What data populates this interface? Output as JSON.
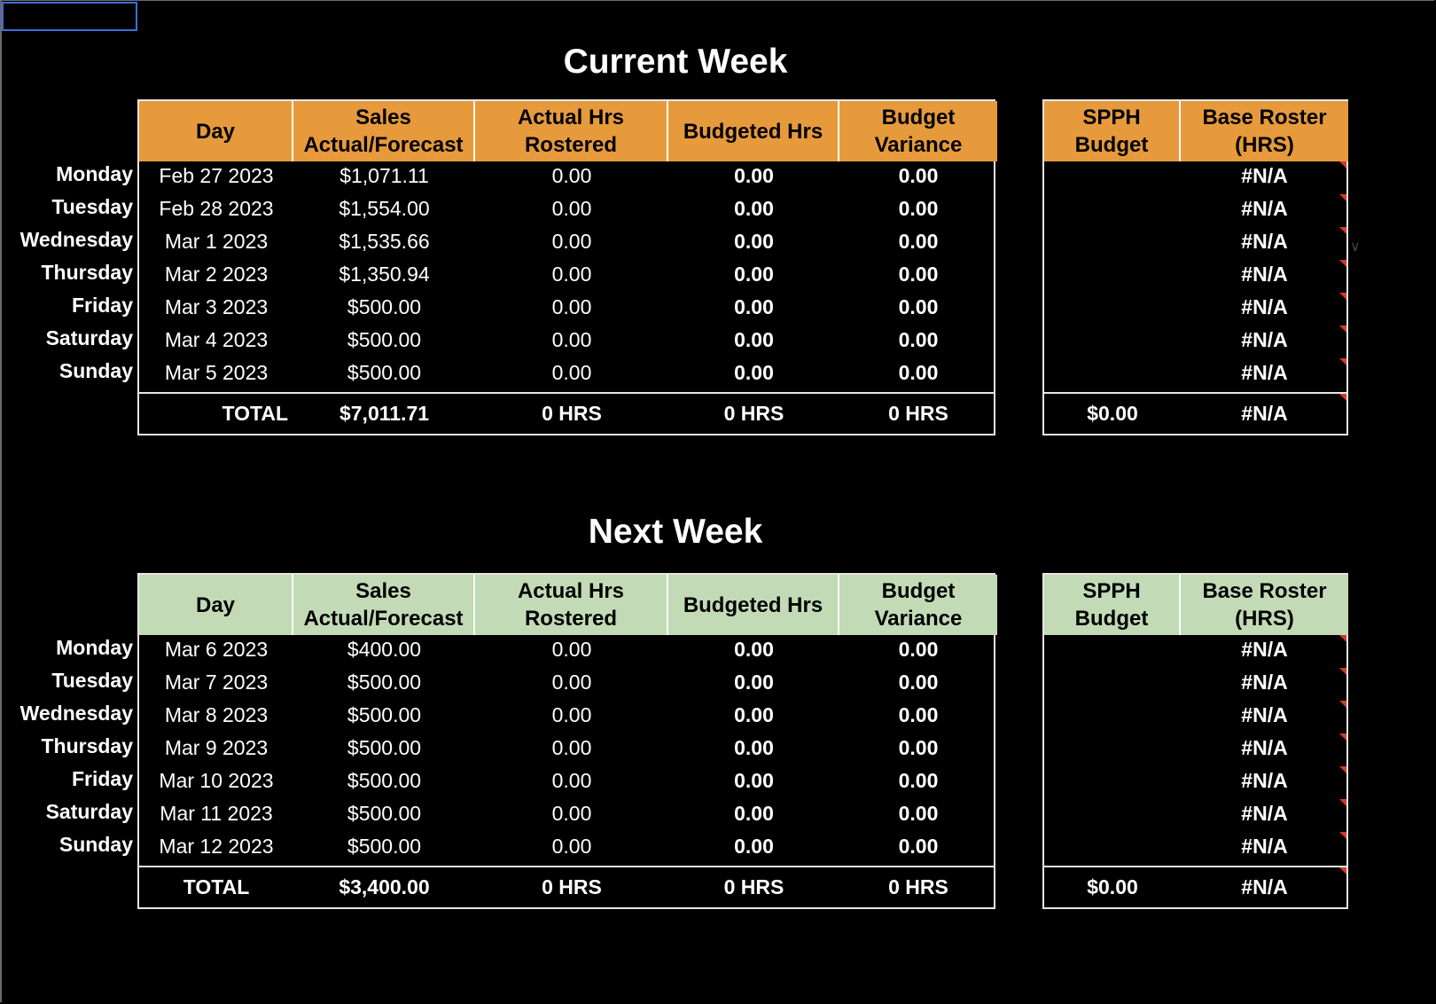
{
  "current_week": {
    "title": "Current Week",
    "headers": [
      "Day",
      "Sales Actual/Forecast",
      "Actual Hrs Rostered",
      "Budgeted Hrs",
      "Budget Variance"
    ],
    "side_headers": [
      "SPPH Budget",
      "Base Roster (HRS)"
    ],
    "rows": [
      {
        "label": "Monday",
        "date": "Feb 27 2023",
        "sales": "$1,071.11",
        "actual": "0.00",
        "budgeted": "0.00",
        "variance": "0.00",
        "spph": "",
        "roster": "#N/A"
      },
      {
        "label": "Tuesday",
        "date": "Feb 28 2023",
        "sales": "$1,554.00",
        "actual": "0.00",
        "budgeted": "0.00",
        "variance": "0.00",
        "spph": "",
        "roster": "#N/A"
      },
      {
        "label": "Wednesday",
        "date": "Mar 1 2023",
        "sales": "$1,535.66",
        "actual": "0.00",
        "budgeted": "0.00",
        "variance": "0.00",
        "spph": "",
        "roster": "#N/A"
      },
      {
        "label": "Thursday",
        "date": "Mar 2 2023",
        "sales": "$1,350.94",
        "actual": "0.00",
        "budgeted": "0.00",
        "variance": "0.00",
        "spph": "",
        "roster": "#N/A"
      },
      {
        "label": "Friday",
        "date": "Mar 3 2023",
        "sales": "$500.00",
        "actual": "0.00",
        "budgeted": "0.00",
        "variance": "0.00",
        "spph": "",
        "roster": "#N/A"
      },
      {
        "label": "Saturday",
        "date": "Mar 4 2023",
        "sales": "$500.00",
        "actual": "0.00",
        "budgeted": "0.00",
        "variance": "0.00",
        "spph": "",
        "roster": "#N/A"
      },
      {
        "label": "Sunday",
        "date": "Mar 5 2023",
        "sales": "$500.00",
        "actual": "0.00",
        "budgeted": "0.00",
        "variance": "0.00",
        "spph": "",
        "roster": "#N/A"
      }
    ],
    "total": {
      "label": "TOTAL",
      "sales": "$7,011.71",
      "actual": "0 HRS",
      "budgeted": "0 HRS",
      "variance": "0 HRS",
      "spph": "$0.00",
      "roster": "#N/A"
    }
  },
  "next_week": {
    "title": "Next Week",
    "headers": [
      "Day",
      "Sales Actual/Forecast",
      "Actual Hrs Rostered",
      "Budgeted Hrs",
      "Budget Variance"
    ],
    "side_headers": [
      "SPPH Budget",
      "Base Roster (HRS)"
    ],
    "rows": [
      {
        "label": "Monday",
        "date": "Mar 6 2023",
        "sales": "$400.00",
        "actual": "0.00",
        "budgeted": "0.00",
        "variance": "0.00",
        "spph": "",
        "roster": "#N/A"
      },
      {
        "label": "Tuesday",
        "date": "Mar 7 2023",
        "sales": "$500.00",
        "actual": "0.00",
        "budgeted": "0.00",
        "variance": "0.00",
        "spph": "",
        "roster": "#N/A"
      },
      {
        "label": "Wednesday",
        "date": "Mar 8 2023",
        "sales": "$500.00",
        "actual": "0.00",
        "budgeted": "0.00",
        "variance": "0.00",
        "spph": "",
        "roster": "#N/A"
      },
      {
        "label": "Thursday",
        "date": "Mar 9 2023",
        "sales": "$500.00",
        "actual": "0.00",
        "budgeted": "0.00",
        "variance": "0.00",
        "spph": "",
        "roster": "#N/A"
      },
      {
        "label": "Friday",
        "date": "Mar 10 2023",
        "sales": "$500.00",
        "actual": "0.00",
        "budgeted": "0.00",
        "variance": "0.00",
        "spph": "",
        "roster": "#N/A"
      },
      {
        "label": "Saturday",
        "date": "Mar 11 2023",
        "sales": "$500.00",
        "actual": "0.00",
        "budgeted": "0.00",
        "variance": "0.00",
        "spph": "",
        "roster": "#N/A"
      },
      {
        "label": "Sunday",
        "date": "Mar 12 2023",
        "sales": "$500.00",
        "actual": "0.00",
        "budgeted": "0.00",
        "variance": "0.00",
        "spph": "",
        "roster": "#N/A"
      }
    ],
    "total": {
      "label": "TOTAL",
      "sales": "$3,400.00",
      "actual": "0 HRS",
      "budgeted": "0 HRS",
      "variance": "0 HRS",
      "spph": "$0.00",
      "roster": "#N/A"
    }
  },
  "colors": {
    "current_header": "#e69a3c",
    "next_header": "#c2dbb6",
    "comment_marker": "#d9352b",
    "selection": "#3d6fd6"
  }
}
